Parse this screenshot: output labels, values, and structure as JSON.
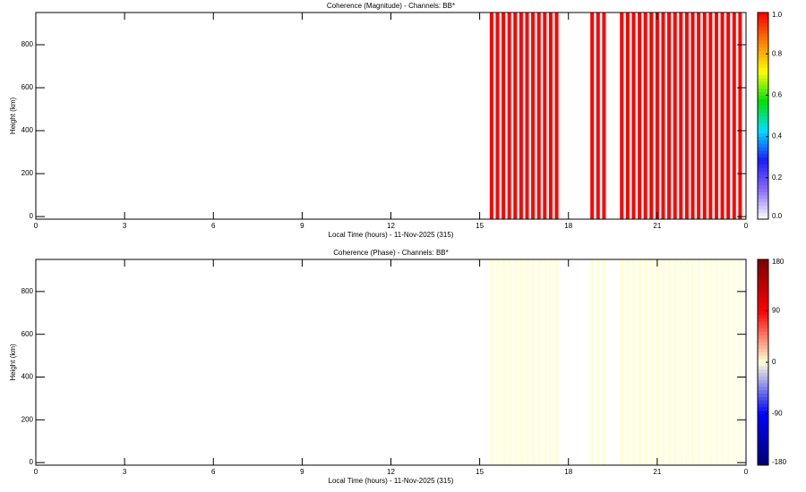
{
  "chart_data": [
    {
      "type": "stripes",
      "title": "Coherence (Magnitude) - Channels: BB*",
      "x_label": "Local Time (hours) - 11-Nov-2025 (315)",
      "y_label": "Height (km)",
      "x": [
        15.4,
        15.6,
        15.8,
        16.0,
        16.2,
        16.4,
        16.6,
        16.8,
        17.0,
        17.2,
        17.4,
        17.6,
        18.8,
        19.0,
        19.2,
        19.8,
        20.0,
        20.2,
        20.4,
        20.6,
        20.8,
        21.0,
        21.2,
        21.4,
        21.6,
        21.8,
        22.0,
        22.2,
        22.4,
        22.6,
        22.8,
        23.0,
        23.2,
        23.4,
        23.6,
        23.8
      ],
      "values": [
        1,
        1,
        1,
        1,
        1,
        1,
        1,
        1,
        1,
        1,
        1,
        1,
        1,
        1,
        1,
        1,
        1,
        1,
        1,
        1,
        1,
        1,
        1,
        1,
        1,
        1,
        1,
        1,
        1,
        1,
        1,
        1,
        1,
        1,
        1,
        1
      ],
      "xlim": [
        0,
        24
      ],
      "xticks": [
        0,
        3,
        6,
        9,
        12,
        15,
        18,
        21,
        {
          "value": 24,
          "label": "0"
        }
      ],
      "ylim": [
        -12,
        950
      ],
      "yticks": [
        0,
        200,
        400,
        600,
        800
      ],
      "zlim": [
        0,
        1
      ],
      "zticks": [
        {
          "value": 0,
          "label": "0.0"
        },
        {
          "value": 0.2,
          "label": "0.2"
        },
        {
          "value": 0.4,
          "label": "0.4"
        },
        {
          "value": 0.6,
          "label": "0.6"
        },
        {
          "value": 0.8,
          "label": "0.8"
        },
        {
          "value": 1,
          "label": "1.0"
        }
      ],
      "colorscale": [
        "#ffffff",
        "#8a6cff",
        "#1a1aff",
        "#00e0ff",
        "#00e000",
        "#ffff00",
        "#ff8000",
        "#ff0000"
      ]
    },
    {
      "type": "stripes",
      "title": "Coherence (Phase) - Channels: BB*",
      "x_label": "Local Time (hours) - 11-Nov-2025 (315)",
      "y_label": "Height (km)",
      "x": [
        15.4,
        15.6,
        15.8,
        16.0,
        16.2,
        16.4,
        16.6,
        16.8,
        17.0,
        17.2,
        17.4,
        17.6,
        18.8,
        19.0,
        19.2,
        19.8,
        20.0,
        20.2,
        20.4,
        20.6,
        20.8,
        21.0,
        21.2,
        21.4,
        21.6,
        21.8,
        22.0,
        22.2,
        22.4,
        22.6,
        22.8,
        23.0,
        23.2,
        23.4,
        23.6,
        23.8
      ],
      "values": [
        0,
        0,
        0,
        0,
        0,
        0,
        0,
        0,
        0,
        0,
        0,
        0,
        0,
        0,
        0,
        0,
        0,
        0,
        0,
        0,
        0,
        0,
        0,
        0,
        0,
        0,
        0,
        0,
        0,
        0,
        0,
        0,
        0,
        0,
        0,
        0
      ],
      "xlim": [
        0,
        24
      ],
      "xticks": [
        0,
        3,
        6,
        9,
        12,
        15,
        18,
        21,
        {
          "value": 24,
          "label": "0"
        }
      ],
      "ylim": [
        -12,
        950
      ],
      "yticks": [
        0,
        200,
        400,
        600,
        800
      ],
      "zlim": [
        -180,
        180
      ],
      "zticks": [
        -180,
        -90,
        0,
        90,
        180
      ],
      "colorscale": [
        "#00007a",
        "#0000ff",
        "#ffffd8",
        "#ff0000",
        "#7a0000"
      ]
    }
  ]
}
